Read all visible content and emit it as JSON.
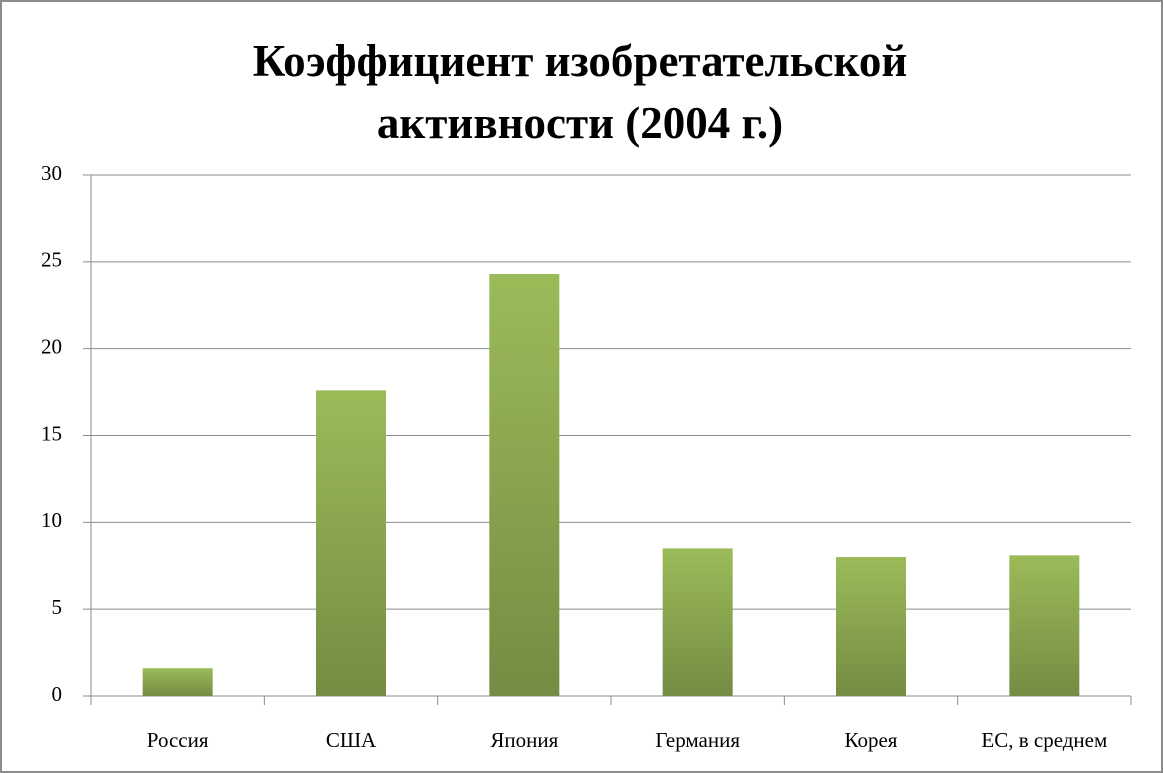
{
  "chart_data": {
    "type": "bar",
    "title": "Коэффициент изобретательской активности (2004 г.)",
    "categories": [
      "Россия",
      "США",
      "Япония",
      "Германия",
      "Корея",
      "ЕС, в среднем"
    ],
    "values": [
      1.6,
      17.6,
      24.3,
      8.5,
      8.0,
      8.1
    ],
    "color": "#9bbb59",
    "ylim": [
      0,
      30
    ],
    "yticks": [
      0,
      5,
      10,
      15,
      20,
      25,
      30
    ],
    "grid": true
  }
}
